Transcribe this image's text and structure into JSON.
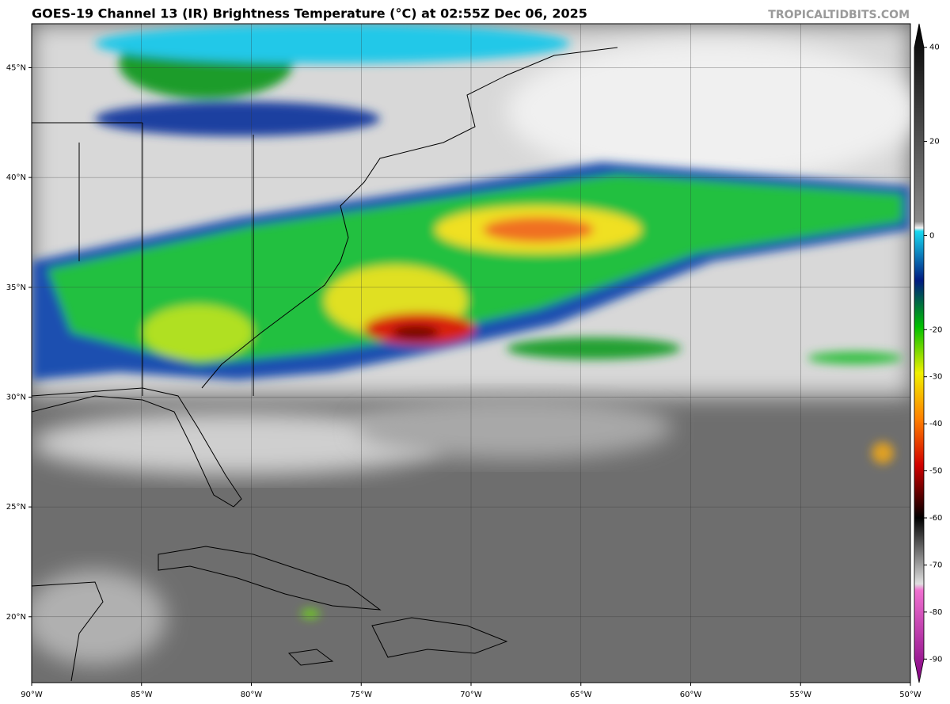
{
  "map": {
    "title": "GOES-19 Channel 13 (IR) Brightness Temperature (°C) at 02:55Z Dec 06, 2025",
    "watermark": "TROPICALTIDBITS.COM",
    "lonlim": [
      -90,
      -50
    ],
    "latlim": [
      17,
      47
    ],
    "lonticks": [
      {
        "value": -90,
        "label": "90°W"
      },
      {
        "value": -85,
        "label": "85°W"
      },
      {
        "value": -80,
        "label": "80°W"
      },
      {
        "value": -75,
        "label": "75°W"
      },
      {
        "value": -70,
        "label": "70°W"
      },
      {
        "value": -65,
        "label": "65°W"
      },
      {
        "value": -60,
        "label": "60°W"
      },
      {
        "value": -55,
        "label": "55°W"
      },
      {
        "value": -50,
        "label": "50°W"
      }
    ],
    "latticks": [
      {
        "value": 45,
        "label": "45°N"
      },
      {
        "value": 40,
        "label": "40°N"
      },
      {
        "value": 35,
        "label": "35°N"
      },
      {
        "value": 30,
        "label": "30°N"
      },
      {
        "value": 25,
        "label": "25°N"
      },
      {
        "value": 20,
        "label": "20°N"
      }
    ],
    "colorbar": {
      "lim": [
        -95,
        45
      ],
      "ticks": [
        40,
        20,
        0,
        -20,
        -30,
        -40,
        -50,
        -60,
        -70,
        -80,
        -90
      ]
    }
  }
}
